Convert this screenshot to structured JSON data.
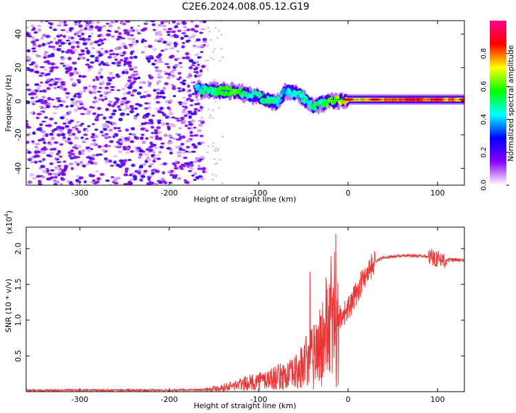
{
  "title": "C2E6.2024.008.05.12.G19",
  "chart_data": [
    {
      "type": "heatmap",
      "xlabel": "Height of straight line (km)",
      "ylabel": "Frequency (Hz)",
      "xlim": [
        -360,
        130
      ],
      "ylim": [
        -50,
        48
      ],
      "xticks": [
        -300,
        -200,
        -100,
        0,
        100
      ],
      "yticks": [
        -40,
        -20,
        0,
        20,
        40
      ],
      "colorbar": {
        "label": "Normalized spectral amplitude",
        "range": [
          0,
          1
        ],
        "ticks": [
          0.0,
          0.2,
          0.4,
          0.6,
          0.8
        ],
        "colors": [
          "#ffffff",
          "#8800ff",
          "#0000ff",
          "#00ffff",
          "#00ff00",
          "#ffff00",
          "#ff0000",
          "#ff0088"
        ]
      },
      "noise_region": {
        "x": [
          -360,
          -160
        ],
        "amplitude": 0.15
      },
      "signal_track": [
        {
          "x": -170,
          "y": 7,
          "amplitude": 0.4
        },
        {
          "x": -150,
          "y": 6,
          "amplitude": 0.5
        },
        {
          "x": -130,
          "y": 6,
          "amplitude": 0.6
        },
        {
          "x": -110,
          "y": 4,
          "amplitude": 0.45
        },
        {
          "x": -90,
          "y": 1,
          "amplitude": 0.5
        },
        {
          "x": -80,
          "y": -1,
          "amplitude": 0.45
        },
        {
          "x": -70,
          "y": 6,
          "amplitude": 0.4
        },
        {
          "x": -55,
          "y": 4,
          "amplitude": 0.45
        },
        {
          "x": -40,
          "y": -3,
          "amplitude": 0.45
        },
        {
          "x": -20,
          "y": 0,
          "amplitude": 0.6
        },
        {
          "x": 0,
          "y": 1,
          "amplitude": 0.7
        },
        {
          "x": 30,
          "y": 1,
          "amplitude": 0.75
        },
        {
          "x": 70,
          "y": 1,
          "amplitude": 0.85
        },
        {
          "x": 100,
          "y": 1,
          "amplitude": 0.8
        },
        {
          "x": 130,
          "y": 1,
          "amplitude": 0.75
        }
      ]
    },
    {
      "type": "line",
      "xlabel": "Height of straight line (km)",
      "ylabel": "SNR (10 * v/v)",
      "multiplier_label": "(x10",
      "multiplier_exp": "4",
      "xlim": [
        -360,
        130
      ],
      "ylim": [
        0,
        2.3
      ],
      "xticks": [
        -300,
        -200,
        -100,
        0,
        100
      ],
      "yticks": [
        0.5,
        1.0,
        1.5,
        2.0
      ],
      "series": [
        {
          "color": "#ee3333",
          "x": [
            -360,
            -200,
            -160,
            -140,
            -120,
            -100,
            -80,
            -60,
            -50,
            -40,
            -30,
            -20,
            -15,
            -10,
            -5,
            0,
            5,
            10,
            20,
            30,
            40,
            60,
            80,
            100,
            110,
            120,
            130
          ],
          "y": [
            0.02,
            0.02,
            0.03,
            0.06,
            0.1,
            0.15,
            0.2,
            0.25,
            0.35,
            0.5,
            0.65,
            0.95,
            1.0,
            1.05,
            1.1,
            1.15,
            1.25,
            1.4,
            1.65,
            1.82,
            1.88,
            1.9,
            1.9,
            1.86,
            1.84,
            1.84,
            1.83
          ]
        }
      ]
    }
  ]
}
